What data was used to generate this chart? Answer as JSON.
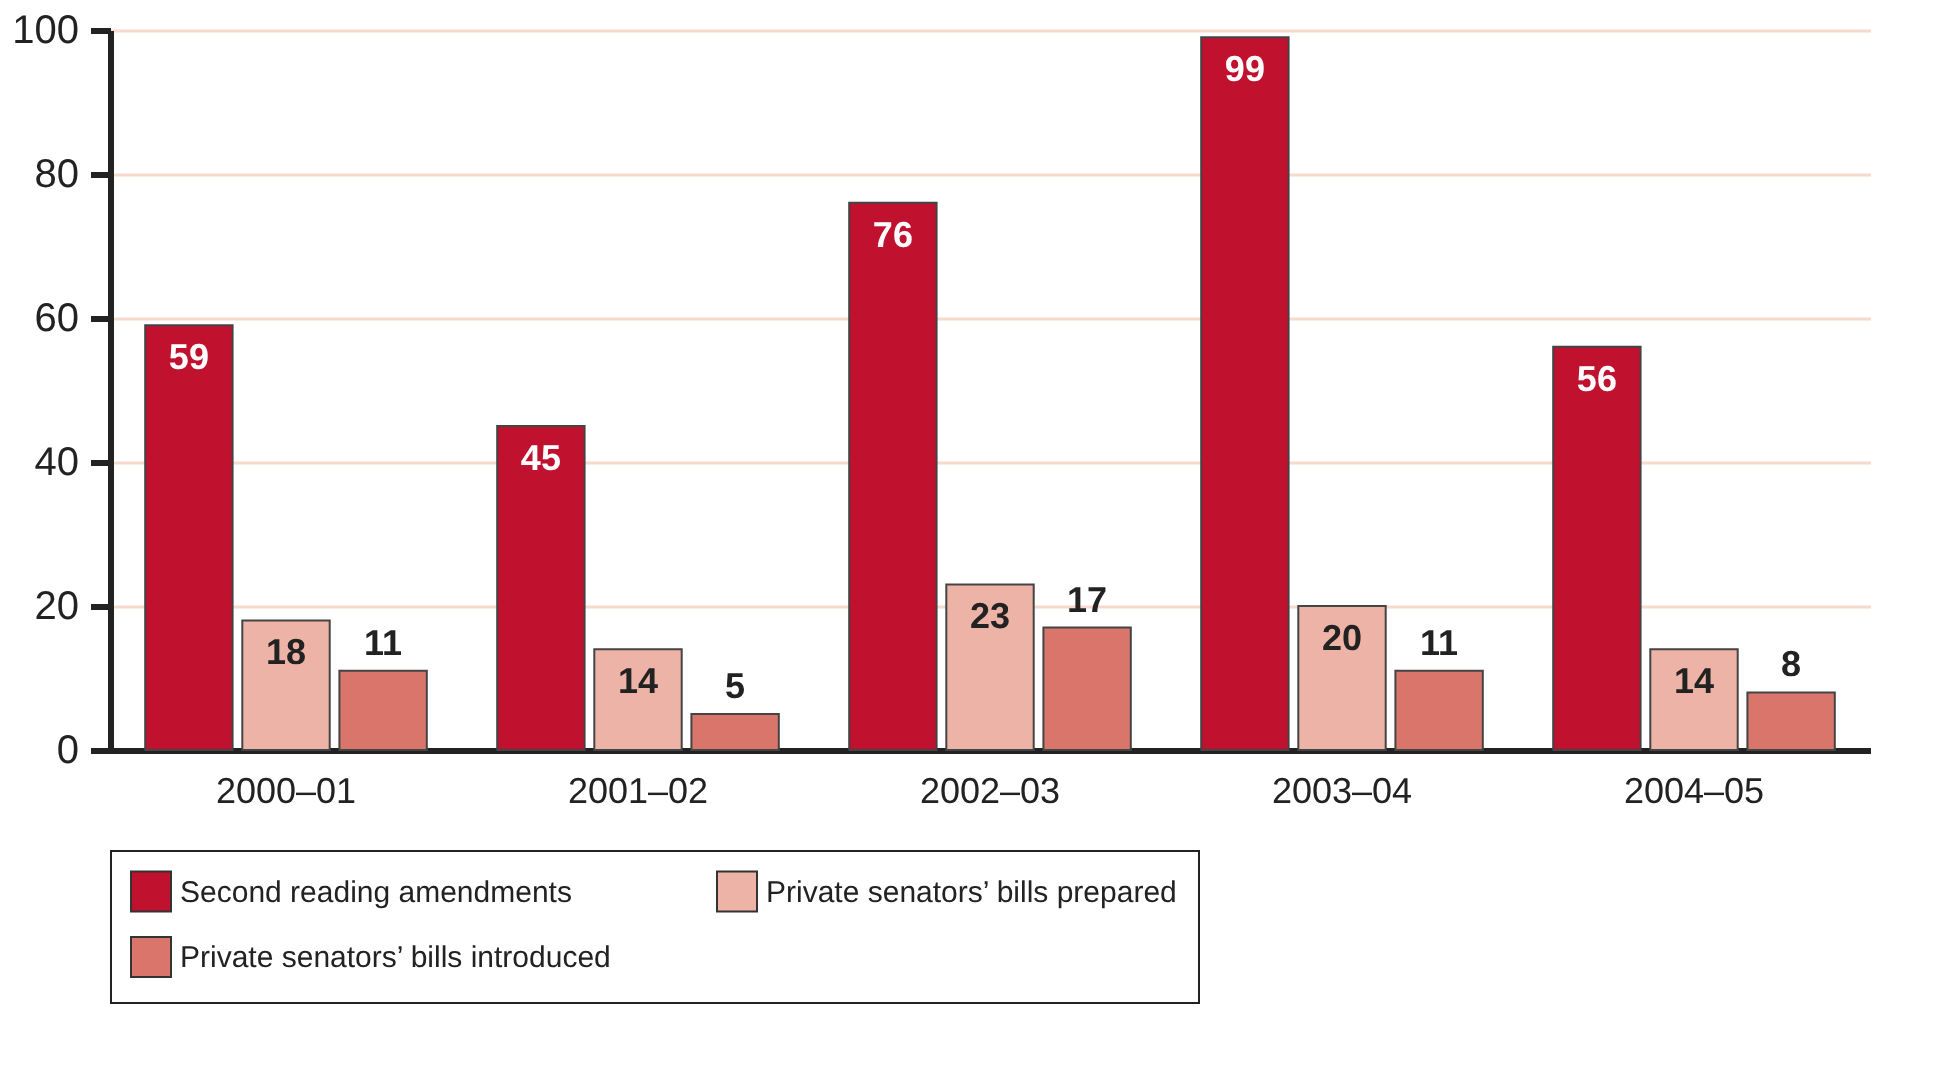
{
  "chart_data": {
    "type": "bar",
    "categories": [
      "2000–01",
      "2001–02",
      "2002–03",
      "2003–04",
      "2004–05"
    ],
    "series": [
      {
        "name": "Second reading amendments",
        "color": "#c0112e",
        "values": [
          59,
          45,
          76,
          99,
          56
        ]
      },
      {
        "name": "Private senators’ bills prepared",
        "color": "#ecb3a6",
        "values": [
          18,
          14,
          23,
          20,
          14
        ]
      },
      {
        "name": "Private senators’ bills introduced",
        "color": "#d9756a",
        "values": [
          11,
          5,
          17,
          11,
          8
        ]
      }
    ],
    "ylim": [
      0,
      100
    ],
    "yticks": [
      0,
      20,
      40,
      60,
      80,
      100
    ],
    "grid": "y",
    "legend": "bottom",
    "data_labels": true
  }
}
